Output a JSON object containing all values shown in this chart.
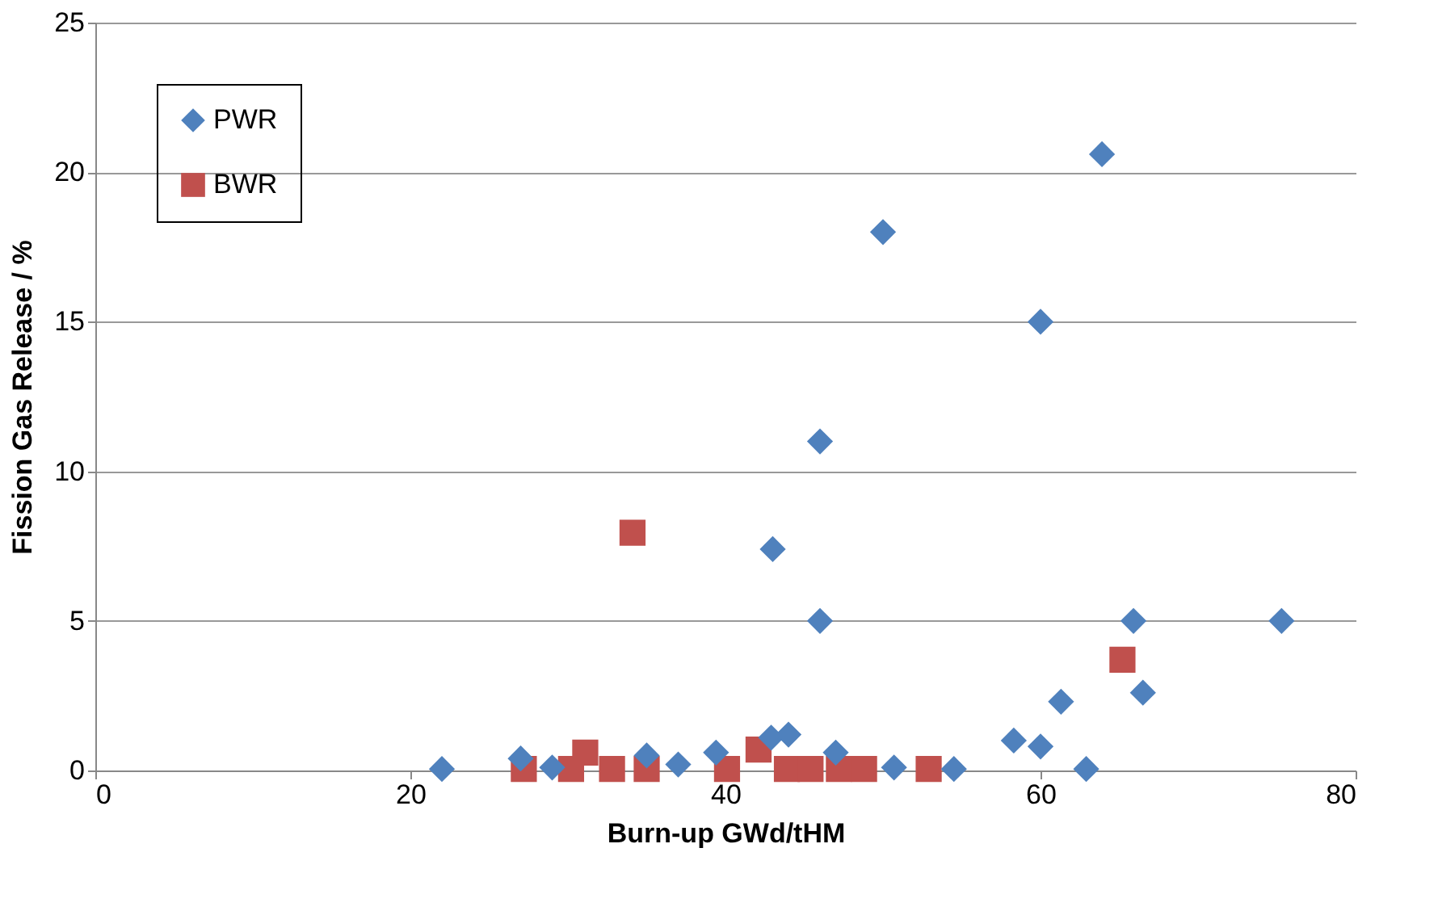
{
  "chart_data": {
    "type": "scatter",
    "xlabel": "Burn-up GWd/tHM",
    "ylabel": "Fission Gas Release / %",
    "xlim": [
      0,
      80
    ],
    "xticks": [
      0,
      20,
      40,
      60,
      80
    ],
    "ylim": [
      0,
      25
    ],
    "yticks": [
      0,
      5,
      10,
      15,
      20,
      25
    ],
    "grid": "y",
    "legend": "top left",
    "series": [
      {
        "name": "PWR",
        "color": "#4f81bd",
        "marker": "diamond",
        "x": [
          22,
          27,
          29,
          35,
          37,
          39.4,
          42.9,
          44,
          47,
          50.7,
          54.5,
          58.3,
          60,
          61.3,
          62.9,
          65.9,
          66.5,
          75.3,
          43,
          46,
          46,
          50,
          60,
          63.9
        ],
        "values": [
          0.05,
          0.4,
          0.1,
          0.5,
          0.2,
          0.6,
          1.1,
          1.2,
          0.6,
          0.1,
          0.05,
          1.0,
          0.8,
          2.3,
          0.05,
          5.0,
          2.6,
          5.0,
          7.4,
          5.0,
          11.0,
          18.0,
          15.0,
          20.6
        ]
      },
      {
        "name": "BWR",
        "color": "#c0504d",
        "marker": "square",
        "x": [
          27.2,
          30.2,
          31.1,
          32.8,
          35,
          40.1,
          42.1,
          43.9,
          45.4,
          47.2,
          48.8,
          52.9,
          34.1,
          65.2
        ],
        "values": [
          0.05,
          0.05,
          0.6,
          0.05,
          0.05,
          0.05,
          0.7,
          0.05,
          0.05,
          0.05,
          0.05,
          0.05,
          7.95,
          3.7
        ]
      }
    ]
  }
}
